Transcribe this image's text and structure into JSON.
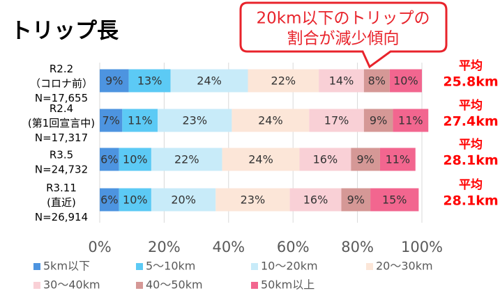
{
  "chart_data": {
    "type": "stacked_barh",
    "title": "トリップ長",
    "callout": [
      "20km以下のトリップの",
      "割合が減少傾向"
    ],
    "average_label": "平均",
    "averages": [
      "25.8km",
      "27.4km",
      "28.1km",
      "28.1km"
    ],
    "categories": [
      "R2.2\n（コロナ前）\nN=17,655",
      "R2.4\n(第1回宣言中)\nN=17,317",
      "R3.5\nN=24,732",
      "R3.11\n(直近)\nN=26,914"
    ],
    "xlim": [
      0,
      100
    ],
    "xticks": [
      {
        "value": 0,
        "label": "0%"
      },
      {
        "value": 20,
        "label": "20%"
      },
      {
        "value": 40,
        "label": "40%"
      },
      {
        "value": 60,
        "label": "60%"
      },
      {
        "value": 80,
        "label": "80%"
      },
      {
        "value": 100,
        "label": "100%"
      }
    ],
    "grid": true,
    "series": [
      {
        "name": "5km以下",
        "color": "#4d94e0",
        "values": [
          9,
          7,
          6,
          6
        ],
        "value_labels": [
          "9%",
          "7%",
          "6%",
          "6%"
        ]
      },
      {
        "name": "5～10km",
        "color": "#5ccaf5",
        "values": [
          13,
          11,
          10,
          10
        ],
        "value_labels": [
          "13%",
          "11%",
          "10%",
          "10%"
        ]
      },
      {
        "name": "10～20km",
        "color": "#c8ebf9",
        "values": [
          24,
          23,
          22,
          20
        ],
        "value_labels": [
          "24%",
          "23%",
          "22%",
          "20%"
        ]
      },
      {
        "name": "20～30km",
        "color": "#fce6d8",
        "values": [
          22,
          24,
          24,
          23
        ],
        "value_labels": [
          "22%",
          "24%",
          "24%",
          "23%"
        ]
      },
      {
        "name": "30～40km",
        "color": "#f9d0d6",
        "values": [
          14,
          17,
          16,
          16
        ],
        "value_labels": [
          "14%",
          "17%",
          "16%",
          "16%"
        ]
      },
      {
        "name": "40～50km",
        "color": "#d59896",
        "values": [
          8,
          9,
          9,
          9
        ],
        "value_labels": [
          "8%",
          "9%",
          "9%",
          "9%"
        ]
      },
      {
        "name": "50km以上",
        "color": "#f2668f",
        "values": [
          10,
          11,
          11,
          15
        ],
        "value_labels": [
          "10%",
          "11%",
          "11%",
          "15%"
        ]
      }
    ]
  }
}
